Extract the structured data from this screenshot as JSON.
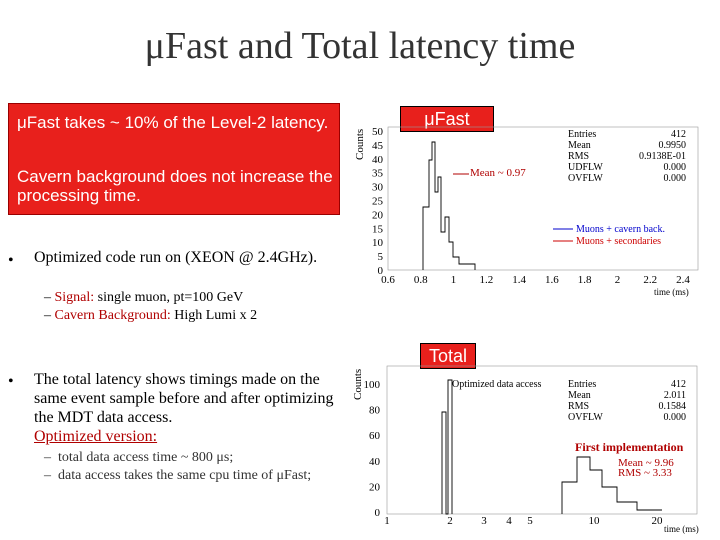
{
  "title": "μFast and Total latency time",
  "redbox": {
    "p1": "μFast takes ~ 10% of the Level-2 latency.",
    "p2": "Cavern background does not increase the processing time."
  },
  "bullets": {
    "b1": "Optimized code run on (XEON @ 2.4GHz).",
    "b1_sub1_label": "Signal:",
    "b1_sub1_text": "single muon, pt=100 GeV",
    "b1_sub2_label": "Cavern Background:",
    "b1_sub2_text": "High Lumi x 2",
    "b2": "The total latency shows timings made on the same event sample before and after optimizing the MDT data access.",
    "b2_opt": "Optimized version:",
    "b2_sub1": "total data access time ~ 800 μs;",
    "b2_sub2": "data access takes the same cpu time of μFast;"
  },
  "plot1": {
    "label": "μFast",
    "ylabel": "Counts",
    "xlabel": "time (ms)",
    "yticks": [
      "50",
      "45",
      "40",
      "35",
      "30",
      "25",
      "20",
      "15",
      "10",
      "5",
      "0"
    ],
    "xticks": [
      "0.6",
      "0.8",
      "1",
      "1.2",
      "1.4",
      "1.6",
      "1.8",
      "2",
      "2.2",
      "2.4"
    ],
    "stats": [
      [
        "Entries",
        "412"
      ],
      [
        "Mean",
        "0.9950"
      ],
      [
        "RMS",
        "0.9138E-01"
      ],
      [
        "UDFLW",
        "0.000"
      ],
      [
        "OVFLW",
        "0.000"
      ]
    ],
    "annotation": "Mean ~ 0.97",
    "legend": [
      "Muons + cavern back.",
      "Muons + secondaries"
    ],
    "colors": {
      "series1": "#0000cc",
      "series2": "#cc0000"
    }
  },
  "plot2": {
    "label": "Total",
    "ylabel": "Counts",
    "xlabel": "time (ms)",
    "yticks": [
      "100",
      "80",
      "60",
      "40",
      "20",
      "0"
    ],
    "xticks": [
      "1",
      "2",
      "3",
      "4",
      "5",
      "10",
      "20"
    ],
    "stats": [
      [
        "Entries",
        "412"
      ],
      [
        "Mean",
        "2.011"
      ],
      [
        "RMS",
        "0.1584"
      ],
      [
        "OVFLW",
        "0.000"
      ]
    ],
    "annotation_opt": "Optimized data access",
    "annotation_first": "First implementation",
    "annotation_mean": "Mean ~ 9.96",
    "annotation_rms": "RMS ~ 3.33"
  }
}
